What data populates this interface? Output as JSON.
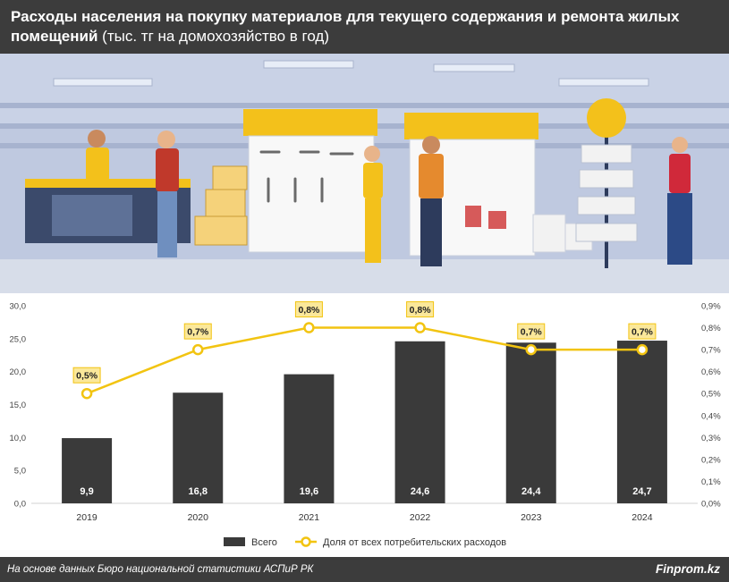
{
  "header": {
    "title_bold": "Расходы населения на покупку материалов для текущего содержания и ремонта жилых помещений",
    "title_unit": "(тыс. тг на домохозяйство в год)"
  },
  "footer": {
    "source": "На основе данных Бюро национальной статистики АСПиР РК",
    "brand": "Finprom.kz"
  },
  "colors": {
    "bar": "#3a3a3a",
    "line": "#f2c411",
    "header_bg": "#3c3c3c",
    "label_bg": "#fbe89a"
  },
  "chart_data": {
    "type": "bar",
    "categories": [
      "2019",
      "2020",
      "2021",
      "2022",
      "2023",
      "2024"
    ],
    "series": [
      {
        "name": "Всего",
        "type": "bar",
        "axis": "left",
        "values": [
          9.9,
          16.8,
          19.6,
          24.6,
          24.4,
          24.7
        ],
        "labels": [
          "9,9",
          "16,8",
          "19,6",
          "24,6",
          "24,4",
          "24,7"
        ]
      },
      {
        "name": "Доля от всех потребительских расходов",
        "type": "line",
        "axis": "right",
        "values": [
          0.5,
          0.7,
          0.8,
          0.8,
          0.7,
          0.7
        ],
        "labels": [
          "0,5%",
          "0,7%",
          "0,8%",
          "0,8%",
          "0,7%",
          "0,7%"
        ]
      }
    ],
    "y_left": {
      "ylim": [
        0,
        30
      ],
      "ticks": [
        0,
        5,
        10,
        15,
        20,
        25,
        30
      ],
      "tick_labels": [
        "0,0",
        "5,0",
        "10,0",
        "15,0",
        "20,0",
        "25,0",
        "30,0"
      ]
    },
    "y_right": {
      "ylim": [
        0,
        0.9
      ],
      "ticks": [
        0,
        0.1,
        0.2,
        0.3,
        0.4,
        0.5,
        0.6,
        0.7,
        0.8,
        0.9
      ],
      "tick_labels": [
        "0,0%",
        "0,1%",
        "0,2%",
        "0,3%",
        "0,4%",
        "0,5%",
        "0,6%",
        "0,7%",
        "0,8%",
        "0,9%"
      ]
    },
    "grid": false,
    "legend_position": "bottom"
  }
}
